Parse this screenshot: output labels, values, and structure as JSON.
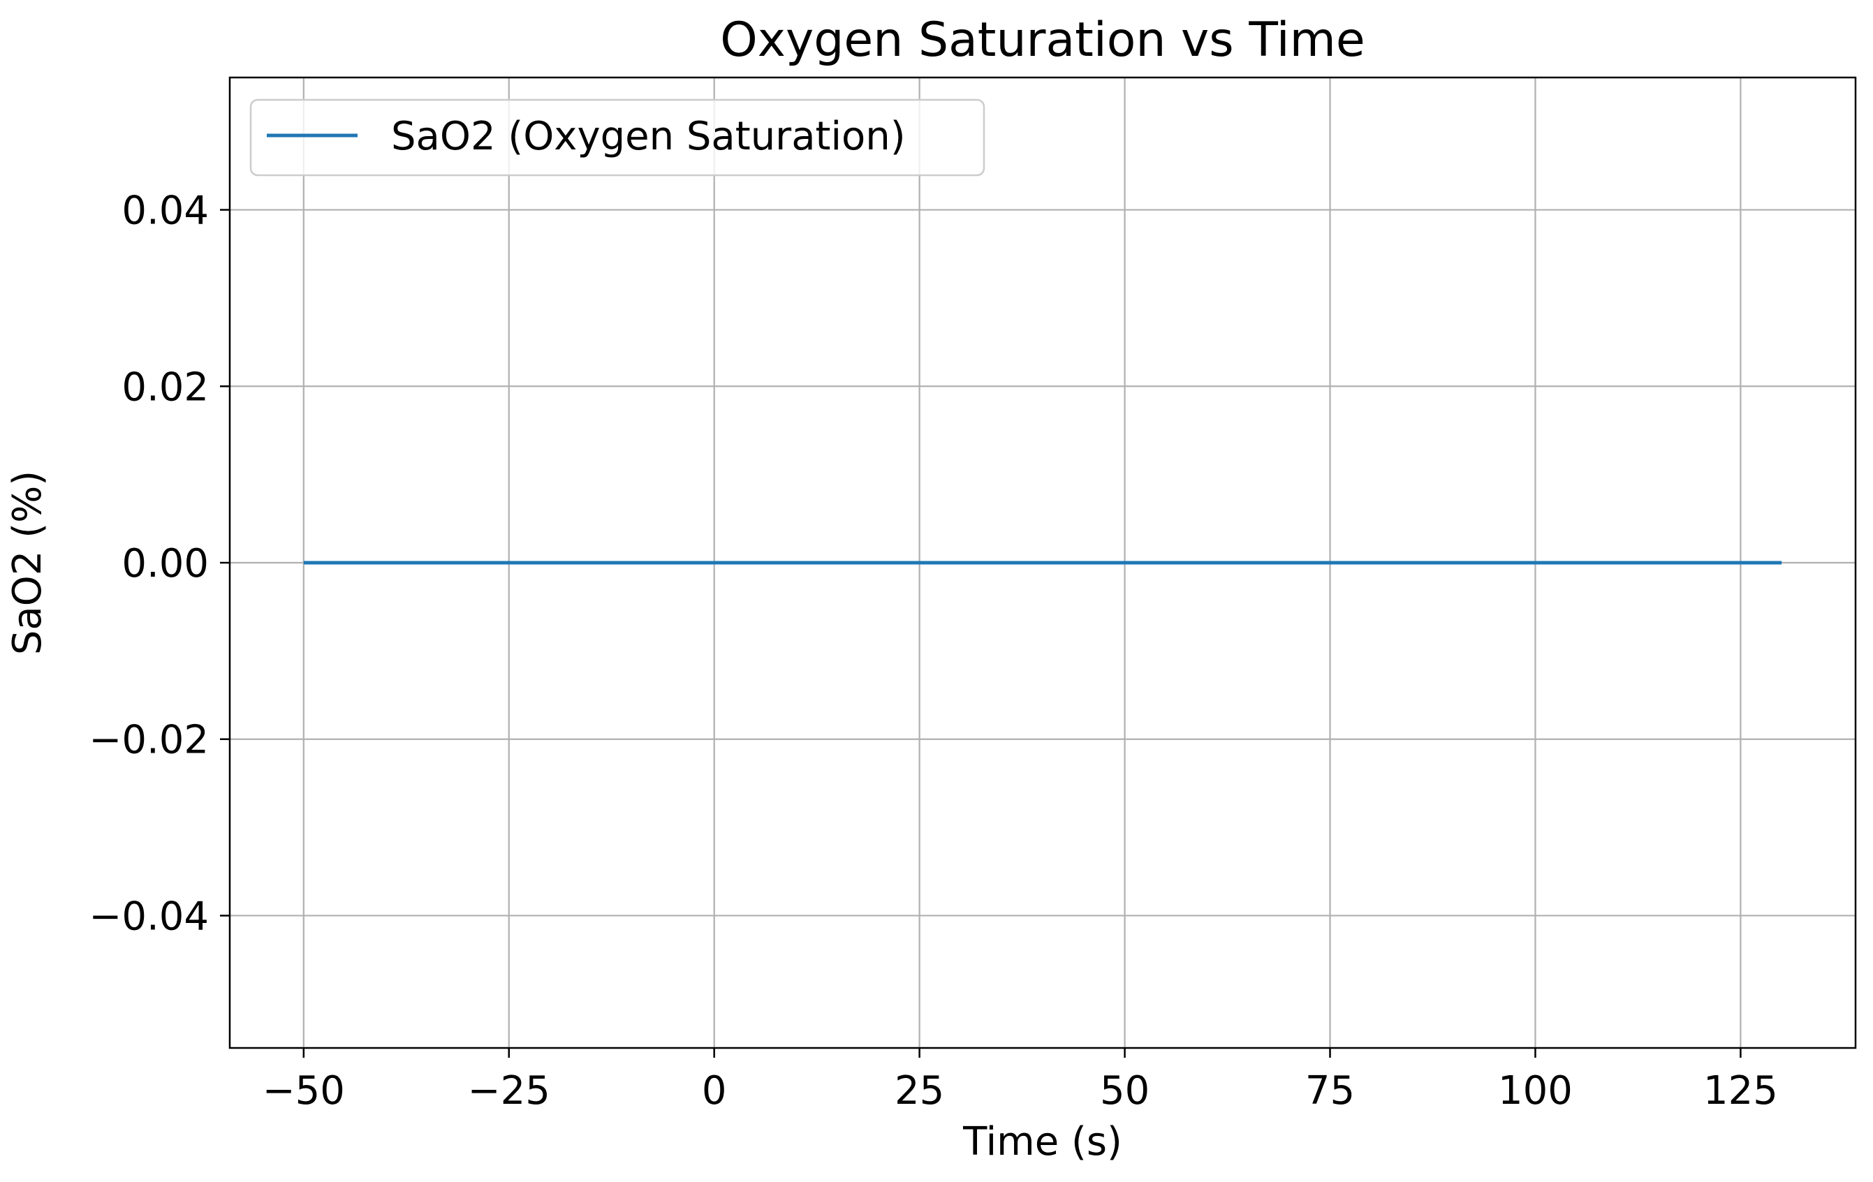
{
  "chart_data": {
    "type": "line",
    "title": "Oxygen Saturation vs Time",
    "xlabel": "Time (s)",
    "ylabel": "SaO2 (%)",
    "xlim": [
      -59,
      139
    ],
    "ylim": [
      -0.055,
      0.055
    ],
    "xticks": [
      -50,
      -25,
      0,
      25,
      50,
      75,
      100,
      125
    ],
    "xtick_labels": [
      "−50",
      "−25",
      "0",
      "25",
      "50",
      "75",
      "100",
      "125"
    ],
    "yticks": [
      -0.04,
      -0.02,
      0.0,
      0.02,
      0.04
    ],
    "ytick_labels": [
      "−0.04",
      "−0.02",
      "0.00",
      "0.02",
      "0.04"
    ],
    "grid": true,
    "legend_position": "top-left",
    "series": [
      {
        "name": "SaO2 (Oxygen Saturation)",
        "color": "#1f77b4",
        "x": [
          -50,
          130
        ],
        "y": [
          0,
          0
        ]
      }
    ]
  }
}
